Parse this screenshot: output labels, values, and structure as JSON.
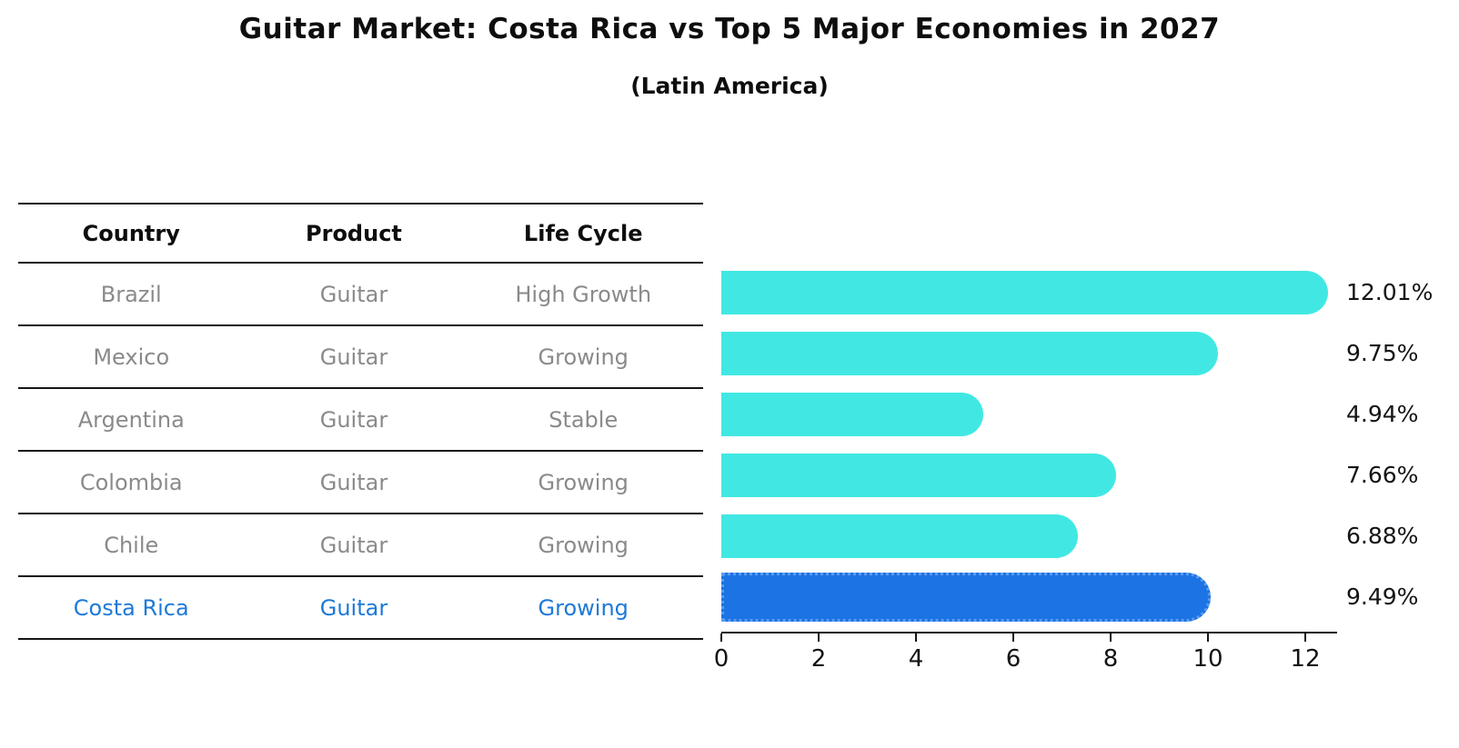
{
  "title": "Guitar Market: Costa Rica vs Top 5 Major Economies in 2027",
  "subtitle": "(Latin America)",
  "table": {
    "headers": [
      "Country",
      "Product",
      "Life Cycle"
    ],
    "rows": [
      {
        "country": "Brazil",
        "product": "Guitar",
        "life_cycle": "High Growth",
        "highlight": false
      },
      {
        "country": "Mexico",
        "product": "Guitar",
        "life_cycle": "Growing",
        "highlight": false
      },
      {
        "country": "Argentina",
        "product": "Guitar",
        "life_cycle": "Stable",
        "highlight": false
      },
      {
        "country": "Colombia",
        "product": "Guitar",
        "life_cycle": "Growing",
        "highlight": false
      },
      {
        "country": "Chile",
        "product": "Guitar",
        "life_cycle": "Growing",
        "highlight": false
      },
      {
        "country": "Costa Rica",
        "product": "Guitar",
        "life_cycle": "Growing",
        "highlight": true
      }
    ]
  },
  "chart_data": {
    "type": "bar",
    "orientation": "horizontal",
    "title": "Guitar Market: Costa Rica vs Top 5 Major Economies in 2027",
    "subtitle": "(Latin America)",
    "categories": [
      "Brazil",
      "Mexico",
      "Argentina",
      "Colombia",
      "Chile",
      "Costa Rica"
    ],
    "values": [
      12.01,
      9.75,
      4.94,
      7.66,
      6.88,
      9.49
    ],
    "value_labels": [
      "12.01%",
      "9.75%",
      "4.94%",
      "7.66%",
      "6.88%",
      "9.49%"
    ],
    "xlabel": "",
    "ylabel": "",
    "xlim": [
      0,
      12.65
    ],
    "x_ticks": [
      0,
      2,
      4,
      6,
      8,
      10,
      12
    ],
    "grid": false,
    "legend": "none",
    "highlight_index": 5,
    "colors": {
      "bar": "#41e8e3",
      "highlight_bar": "#1c73e3",
      "highlight_bar_border": "#5c9cf0",
      "highlight_text": "#1d79d8",
      "text": "#141414",
      "table_text": "#8a8a8a"
    }
  }
}
